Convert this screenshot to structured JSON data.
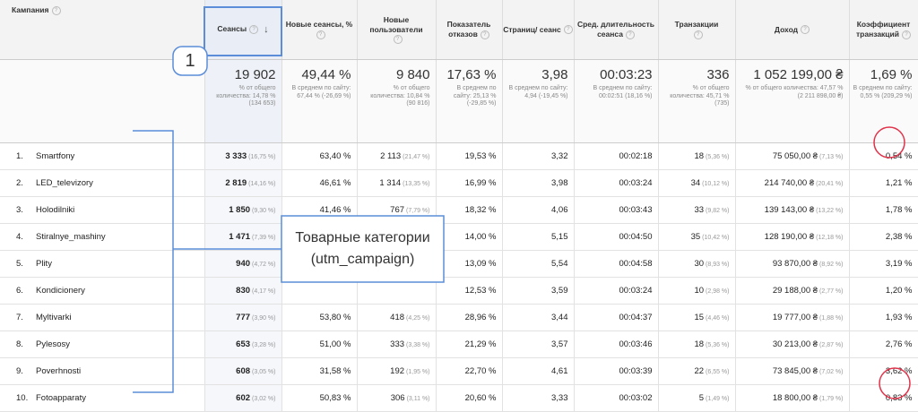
{
  "columns": [
    {
      "label": "Кампания"
    },
    {
      "label": "Сеансы"
    },
    {
      "label": "Новые сеансы, %"
    },
    {
      "label": "Новые пользователи"
    },
    {
      "label": "Показатель отказов"
    },
    {
      "label": "Страниц/ сеанс"
    },
    {
      "label": "Сред. длительность сеанса"
    },
    {
      "label": "Транзакции"
    },
    {
      "label": "Доход"
    },
    {
      "label": "Коэффициент транзакций"
    }
  ],
  "totals": [
    {
      "value": "19 902",
      "note": "% от общего количества: 14,78 % (134 653)"
    },
    {
      "value": "49,44 %",
      "note": "В среднем по сайту: 67,44 % (-26,69 %)"
    },
    {
      "value": "9 840",
      "note": "% от общего количества: 10,84 % (90 816)"
    },
    {
      "value": "17,63 %",
      "note": "В среднем по сайту: 25,13 % (-29,85 %)"
    },
    {
      "value": "3,98",
      "note": "В среднем по сайту: 4,94 (-19,45 %)"
    },
    {
      "value": "00:03:23",
      "note": "В среднем по сайту: 00:02:51 (18,16 %)"
    },
    {
      "value": "336",
      "note": "% от общего количества: 45,71 % (735)"
    },
    {
      "value": "1 052 199,00 ₴",
      "note": "% от общего количества: 47,57 % (2 211 898,00 ₴)"
    },
    {
      "value": "1,69 %",
      "note": "В среднем по сайту: 0,55 % (209,29 %)"
    }
  ],
  "rows": [
    {
      "n": "1.",
      "name": "Smartfony",
      "sessions": "3 333",
      "sessions_pct": "(16,75 %)",
      "new_pct": "63,40 %",
      "new_users": "2 113",
      "new_users_pct": "(21,47 %)",
      "bounce": "19,53 %",
      "pages": "3,32",
      "duration": "00:02:18",
      "trans": "18",
      "trans_pct": "(5,36 %)",
      "revenue": "75 050,00 ₴",
      "revenue_pct": "(7,13 %)",
      "conv": "0,54 %"
    },
    {
      "n": "2.",
      "name": "LED_televizory",
      "sessions": "2 819",
      "sessions_pct": "(14,16 %)",
      "new_pct": "46,61 %",
      "new_users": "1 314",
      "new_users_pct": "(13,35 %)",
      "bounce": "16,99 %",
      "pages": "3,98",
      "duration": "00:03:24",
      "trans": "34",
      "trans_pct": "(10,12 %)",
      "revenue": "214 740,00 ₴",
      "revenue_pct": "(20,41 %)",
      "conv": "1,21 %"
    },
    {
      "n": "3.",
      "name": "Holodilniki",
      "sessions": "1 850",
      "sessions_pct": "(9,30 %)",
      "new_pct": "41,46 %",
      "new_users": "767",
      "new_users_pct": "(7,79 %)",
      "bounce": "18,32 %",
      "pages": "4,06",
      "duration": "00:03:43",
      "trans": "33",
      "trans_pct": "(9,82 %)",
      "revenue": "139 143,00 ₴",
      "revenue_pct": "(13,22 %)",
      "conv": "1,78 %"
    },
    {
      "n": "4.",
      "name": "Stiralnye_mashiny",
      "sessions": "1 471",
      "sessions_pct": "(7,39 %)",
      "new_pct": "",
      "new_users": "",
      "new_users_pct": "",
      "bounce": "14,00 %",
      "pages": "5,15",
      "duration": "00:04:50",
      "trans": "35",
      "trans_pct": "(10,42 %)",
      "revenue": "128 190,00 ₴",
      "revenue_pct": "(12,18 %)",
      "conv": "2,38 %"
    },
    {
      "n": "5.",
      "name": "Plity",
      "sessions": "940",
      "sessions_pct": "(4,72 %)",
      "new_pct": "",
      "new_users": "",
      "new_users_pct": "",
      "bounce": "13,09 %",
      "pages": "5,54",
      "duration": "00:04:58",
      "trans": "30",
      "trans_pct": "(8,93 %)",
      "revenue": "93 870,00 ₴",
      "revenue_pct": "(8,92 %)",
      "conv": "3,19 %"
    },
    {
      "n": "6.",
      "name": "Kondicionery",
      "sessions": "830",
      "sessions_pct": "(4,17 %)",
      "new_pct": "",
      "new_users": "",
      "new_users_pct": "",
      "bounce": "12,53 %",
      "pages": "3,59",
      "duration": "00:03:24",
      "trans": "10",
      "trans_pct": "(2,98 %)",
      "revenue": "29 188,00 ₴",
      "revenue_pct": "(2,77 %)",
      "conv": "1,20 %"
    },
    {
      "n": "7.",
      "name": "Myltivarki",
      "sessions": "777",
      "sessions_pct": "(3,90 %)",
      "new_pct": "53,80 %",
      "new_users": "418",
      "new_users_pct": "(4,25 %)",
      "bounce": "28,96 %",
      "pages": "3,44",
      "duration": "00:04:37",
      "trans": "15",
      "trans_pct": "(4,46 %)",
      "revenue": "19 777,00 ₴",
      "revenue_pct": "(1,88 %)",
      "conv": "1,93 %"
    },
    {
      "n": "8.",
      "name": "Pylesosy",
      "sessions": "653",
      "sessions_pct": "(3,28 %)",
      "new_pct": "51,00 %",
      "new_users": "333",
      "new_users_pct": "(3,38 %)",
      "bounce": "21,29 %",
      "pages": "3,57",
      "duration": "00:03:46",
      "trans": "18",
      "trans_pct": "(5,36 %)",
      "revenue": "30 213,00 ₴",
      "revenue_pct": "(2,87 %)",
      "conv": "2,76 %"
    },
    {
      "n": "9.",
      "name": "Poverhnosti",
      "sessions": "608",
      "sessions_pct": "(3,05 %)",
      "new_pct": "31,58 %",
      "new_users": "192",
      "new_users_pct": "(1,95 %)",
      "bounce": "22,70 %",
      "pages": "4,61",
      "duration": "00:03:39",
      "trans": "22",
      "trans_pct": "(6,55 %)",
      "revenue": "73 845,00 ₴",
      "revenue_pct": "(7,02 %)",
      "conv": "3,62 %"
    },
    {
      "n": "10.",
      "name": "Fotoapparaty",
      "sessions": "602",
      "sessions_pct": "(3,02 %)",
      "new_pct": "50,83 %",
      "new_users": "306",
      "new_users_pct": "(3,11 %)",
      "bounce": "20,60 %",
      "pages": "3,33",
      "duration": "00:03:02",
      "trans": "5",
      "trans_pct": "(1,49 %)",
      "revenue": "18 800,00 ₴",
      "revenue_pct": "(1,79 %)",
      "conv": "0,83 %"
    }
  ],
  "annotations": {
    "callout_number": "1",
    "callout_text_1": "Товарные категории",
    "callout_text_2": "(utm_campaign)",
    "marker_color": "#5b8dd9",
    "circle_color": "#e0334a"
  },
  "icons": {
    "help": "?",
    "sort": "↓"
  }
}
